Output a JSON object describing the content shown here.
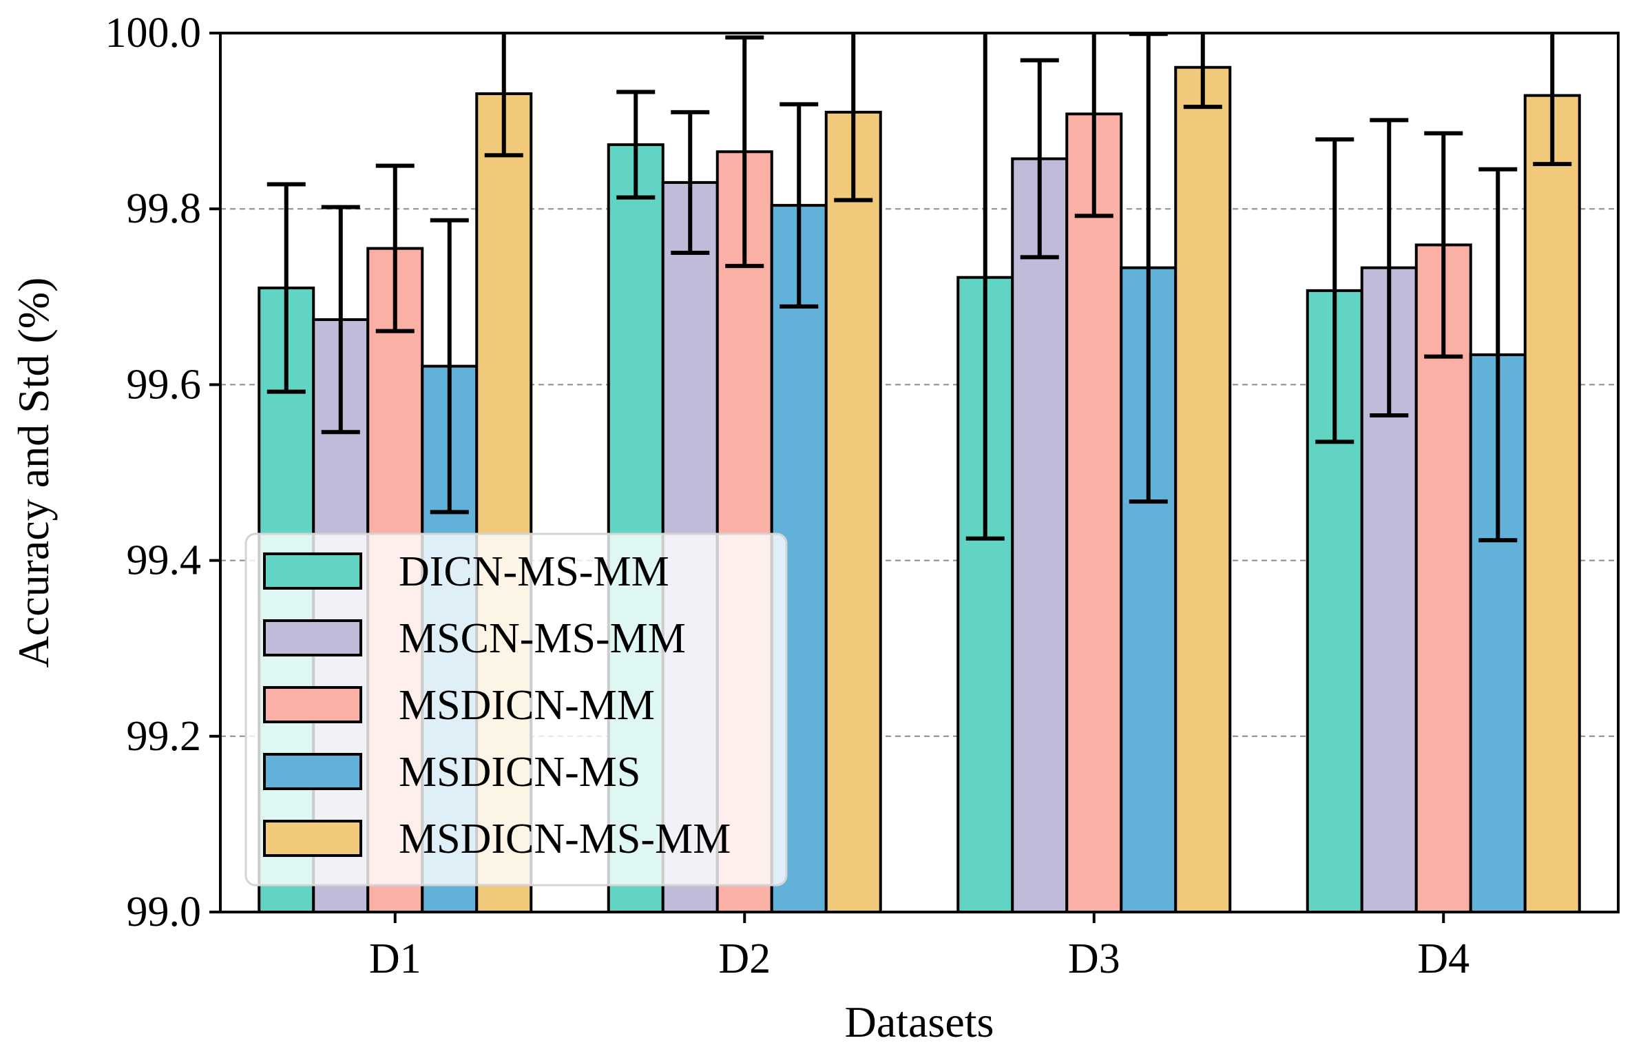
{
  "chart_data": {
    "type": "bar",
    "title": "",
    "xlabel": "Datasets",
    "ylabel": "Accuracy and Std (%)",
    "ylim": [
      99.0,
      100.0
    ],
    "yticks": [
      "99.0",
      "99.2",
      "99.4",
      "99.6",
      "99.8",
      "100.0"
    ],
    "grid": "y-dashed",
    "legend_position": "lower-left",
    "categories": [
      "D1",
      "D2",
      "D3",
      "D4"
    ],
    "series": [
      {
        "name": "DICN-MS-MM",
        "color": "#62d4c4",
        "values": [
          99.71,
          99.873,
          99.722,
          99.707
        ],
        "std": [
          0.118,
          0.06,
          0.297,
          0.172
        ]
      },
      {
        "name": "MSCN-MS-MM",
        "color": "#bfbbd9",
        "values": [
          99.674,
          99.83,
          99.857,
          99.733
        ],
        "std": [
          0.128,
          0.08,
          0.112,
          0.168
        ]
      },
      {
        "name": "MSDICN-MM",
        "color": "#fbb0a6",
        "values": [
          99.755,
          99.865,
          99.908,
          99.759
        ],
        "std": [
          0.094,
          0.13,
          0.116,
          0.127
        ]
      },
      {
        "name": "MSDICN-MS",
        "color": "#62b1d8",
        "values": [
          99.621,
          99.804,
          99.733,
          99.634
        ],
        "std": [
          0.166,
          0.115,
          0.266,
          0.211
        ]
      },
      {
        "name": "MSDICN-MS-MM",
        "color": "#f1c97b",
        "values": [
          99.931,
          99.91,
          99.961,
          99.929
        ],
        "std": [
          0.07,
          0.1,
          0.045,
          0.078
        ]
      }
    ]
  }
}
